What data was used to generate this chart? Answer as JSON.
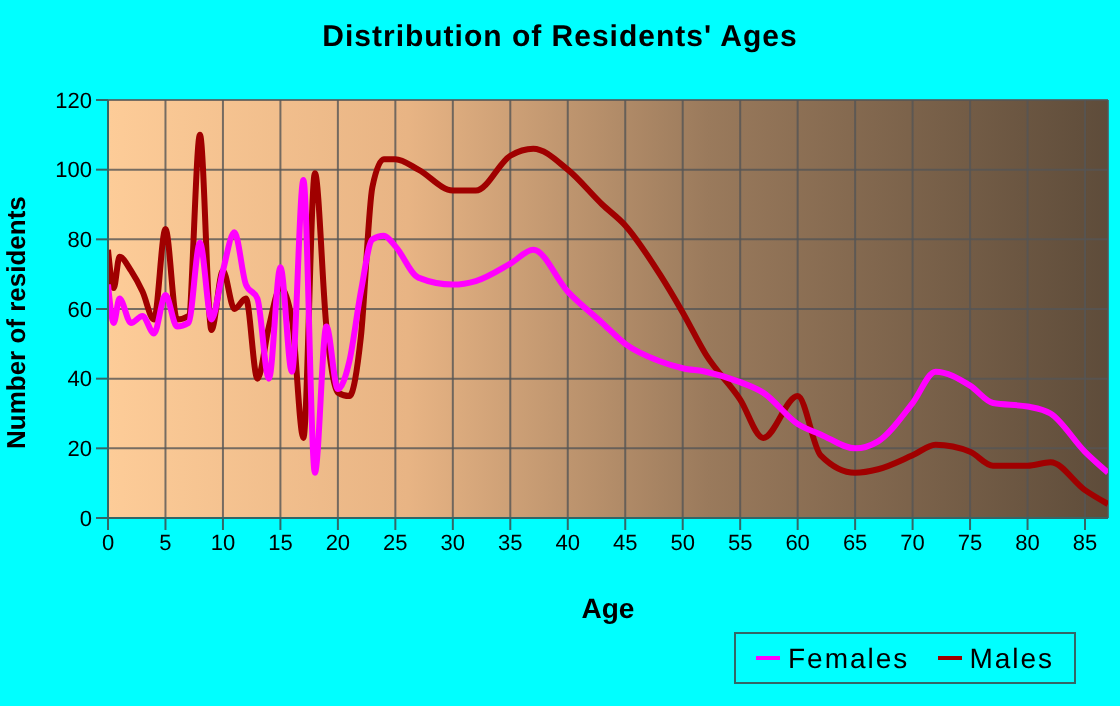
{
  "chart_data": {
    "type": "line",
    "title": "Distribution of Residents' Ages",
    "xlabel": "Age",
    "ylabel": "Number of residents",
    "x": [
      0,
      0.5,
      1,
      2,
      3,
      4,
      5,
      6,
      7,
      8,
      9,
      10,
      11,
      12,
      13,
      14,
      15,
      16,
      17,
      18,
      19,
      20,
      21,
      22,
      23,
      24,
      25,
      27,
      30,
      32,
      35,
      37,
      40,
      43,
      45,
      48,
      50,
      52,
      55,
      57,
      60,
      62,
      65,
      67,
      70,
      72,
      75,
      77,
      80,
      82,
      85,
      87
    ],
    "series": [
      {
        "name": "Males",
        "color": "#a00000",
        "values": [
          77,
          66,
          75,
          71,
          65,
          57,
          83,
          57,
          58,
          110,
          54,
          71,
          60,
          63,
          40,
          55,
          66,
          57,
          23,
          99,
          55,
          36,
          35,
          52,
          95,
          103,
          103,
          100,
          94,
          94,
          104,
          106,
          100,
          90,
          84,
          70,
          59,
          47,
          34,
          23,
          35,
          18,
          13,
          14,
          18,
          21,
          19,
          15,
          15,
          16,
          8,
          4
        ]
      },
      {
        "name": "Females",
        "color": "#ff00ff",
        "values": [
          67,
          56,
          63,
          56,
          58,
          53,
          64,
          55,
          56,
          79,
          57,
          71,
          82,
          67,
          63,
          40,
          72,
          42,
          97,
          13,
          55,
          37,
          45,
          65,
          80,
          81,
          78,
          69,
          67,
          68,
          73,
          77,
          65,
          56,
          50,
          45,
          43,
          42,
          39,
          36,
          27,
          24,
          20,
          22,
          33,
          42,
          38,
          33,
          32,
          30,
          19,
          13
        ]
      }
    ],
    "xlim": [
      0,
      87
    ],
    "xticks": [
      0,
      5,
      10,
      15,
      20,
      25,
      30,
      35,
      40,
      45,
      50,
      55,
      60,
      65,
      70,
      75,
      80,
      85
    ],
    "ylim": [
      0,
      120
    ],
    "yticks": [
      0,
      20,
      40,
      60,
      80,
      100,
      120
    ],
    "grid": true,
    "legend": "bottom right",
    "marker": "none",
    "line_style": "solid"
  }
}
